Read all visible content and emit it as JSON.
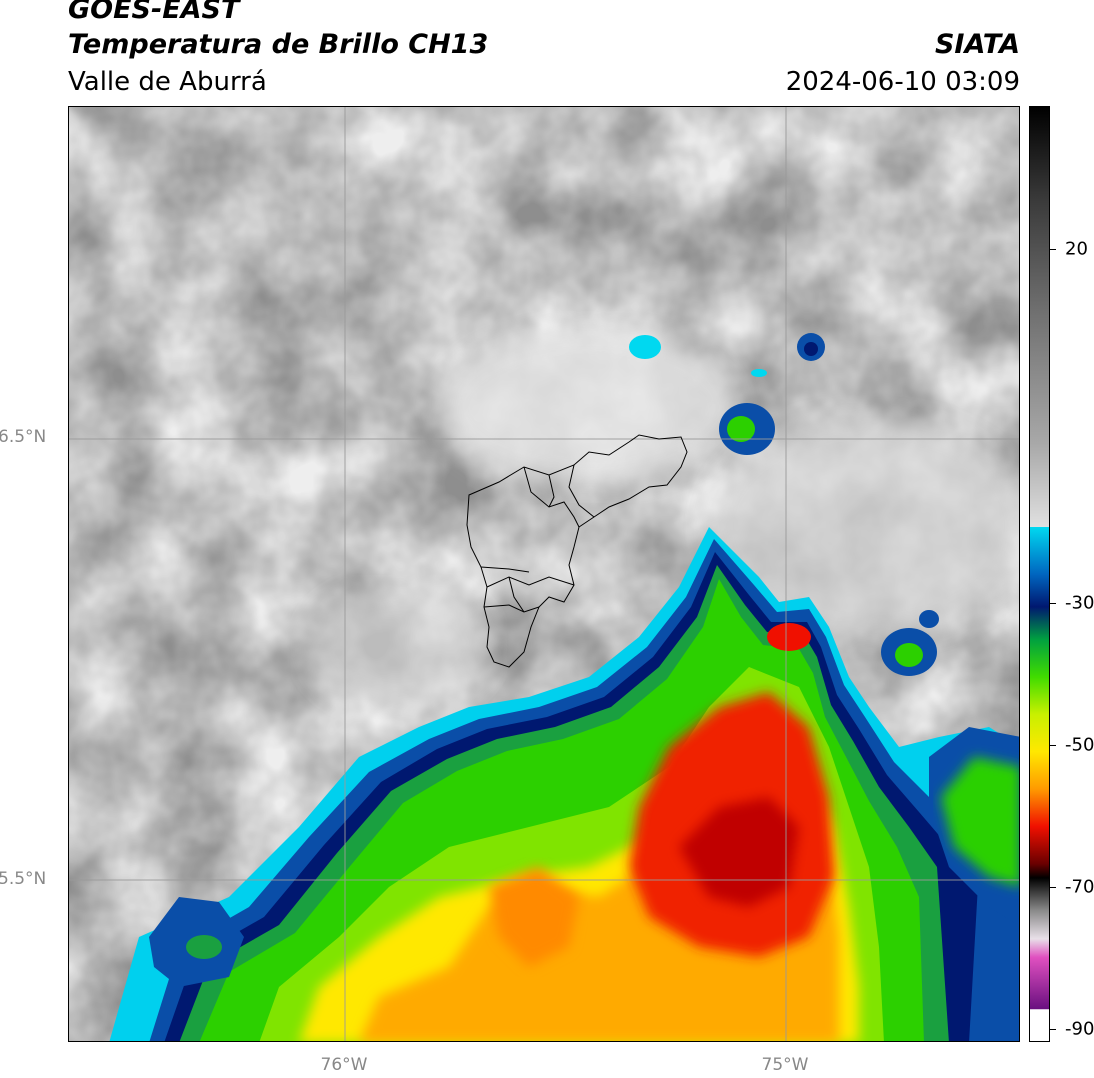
{
  "header": {
    "satellite": "GOES-EAST",
    "product": "Temperatura de Brillo CH13",
    "region": "Valle de Aburrá",
    "organization": "SIATA",
    "datetime": "2024-06-10 03:09"
  },
  "map": {
    "lat_labels": [
      {
        "value": 6.5,
        "label": "6.5°N"
      },
      {
        "value": 5.5,
        "label": "5.5°N"
      }
    ],
    "lon_labels": [
      {
        "value": -76.0,
        "label": "76°W"
      },
      {
        "value": -75.0,
        "label": "75°W"
      }
    ],
    "extent": {
      "lon_min": -76.62,
      "lon_max": -74.53,
      "lat_min": 5.09,
      "lat_max": 7.25
    },
    "gridlines": true
  },
  "colorbar": {
    "ticks": [
      {
        "value": 20,
        "label": "20"
      },
      {
        "value": -30,
        "label": "-30"
      },
      {
        "value": -50,
        "label": "-50"
      },
      {
        "value": -70,
        "label": "-70"
      },
      {
        "value": -90,
        "label": "-90"
      }
    ],
    "colors": {
      "warm_gray": "#8c8c8c",
      "cold_white": "#f0f0f0",
      "cyan": "#00d8f0",
      "blue": "#003c9c",
      "navy": "#001a6e",
      "green": "#00c000",
      "lime": "#70e000",
      "yellow": "#ffe800",
      "orange": "#ff9a00",
      "red": "#f01000",
      "darkred": "#9a0000",
      "black": "#000000",
      "magenta": "#e050c0",
      "purple": "#7a1a8a"
    }
  }
}
